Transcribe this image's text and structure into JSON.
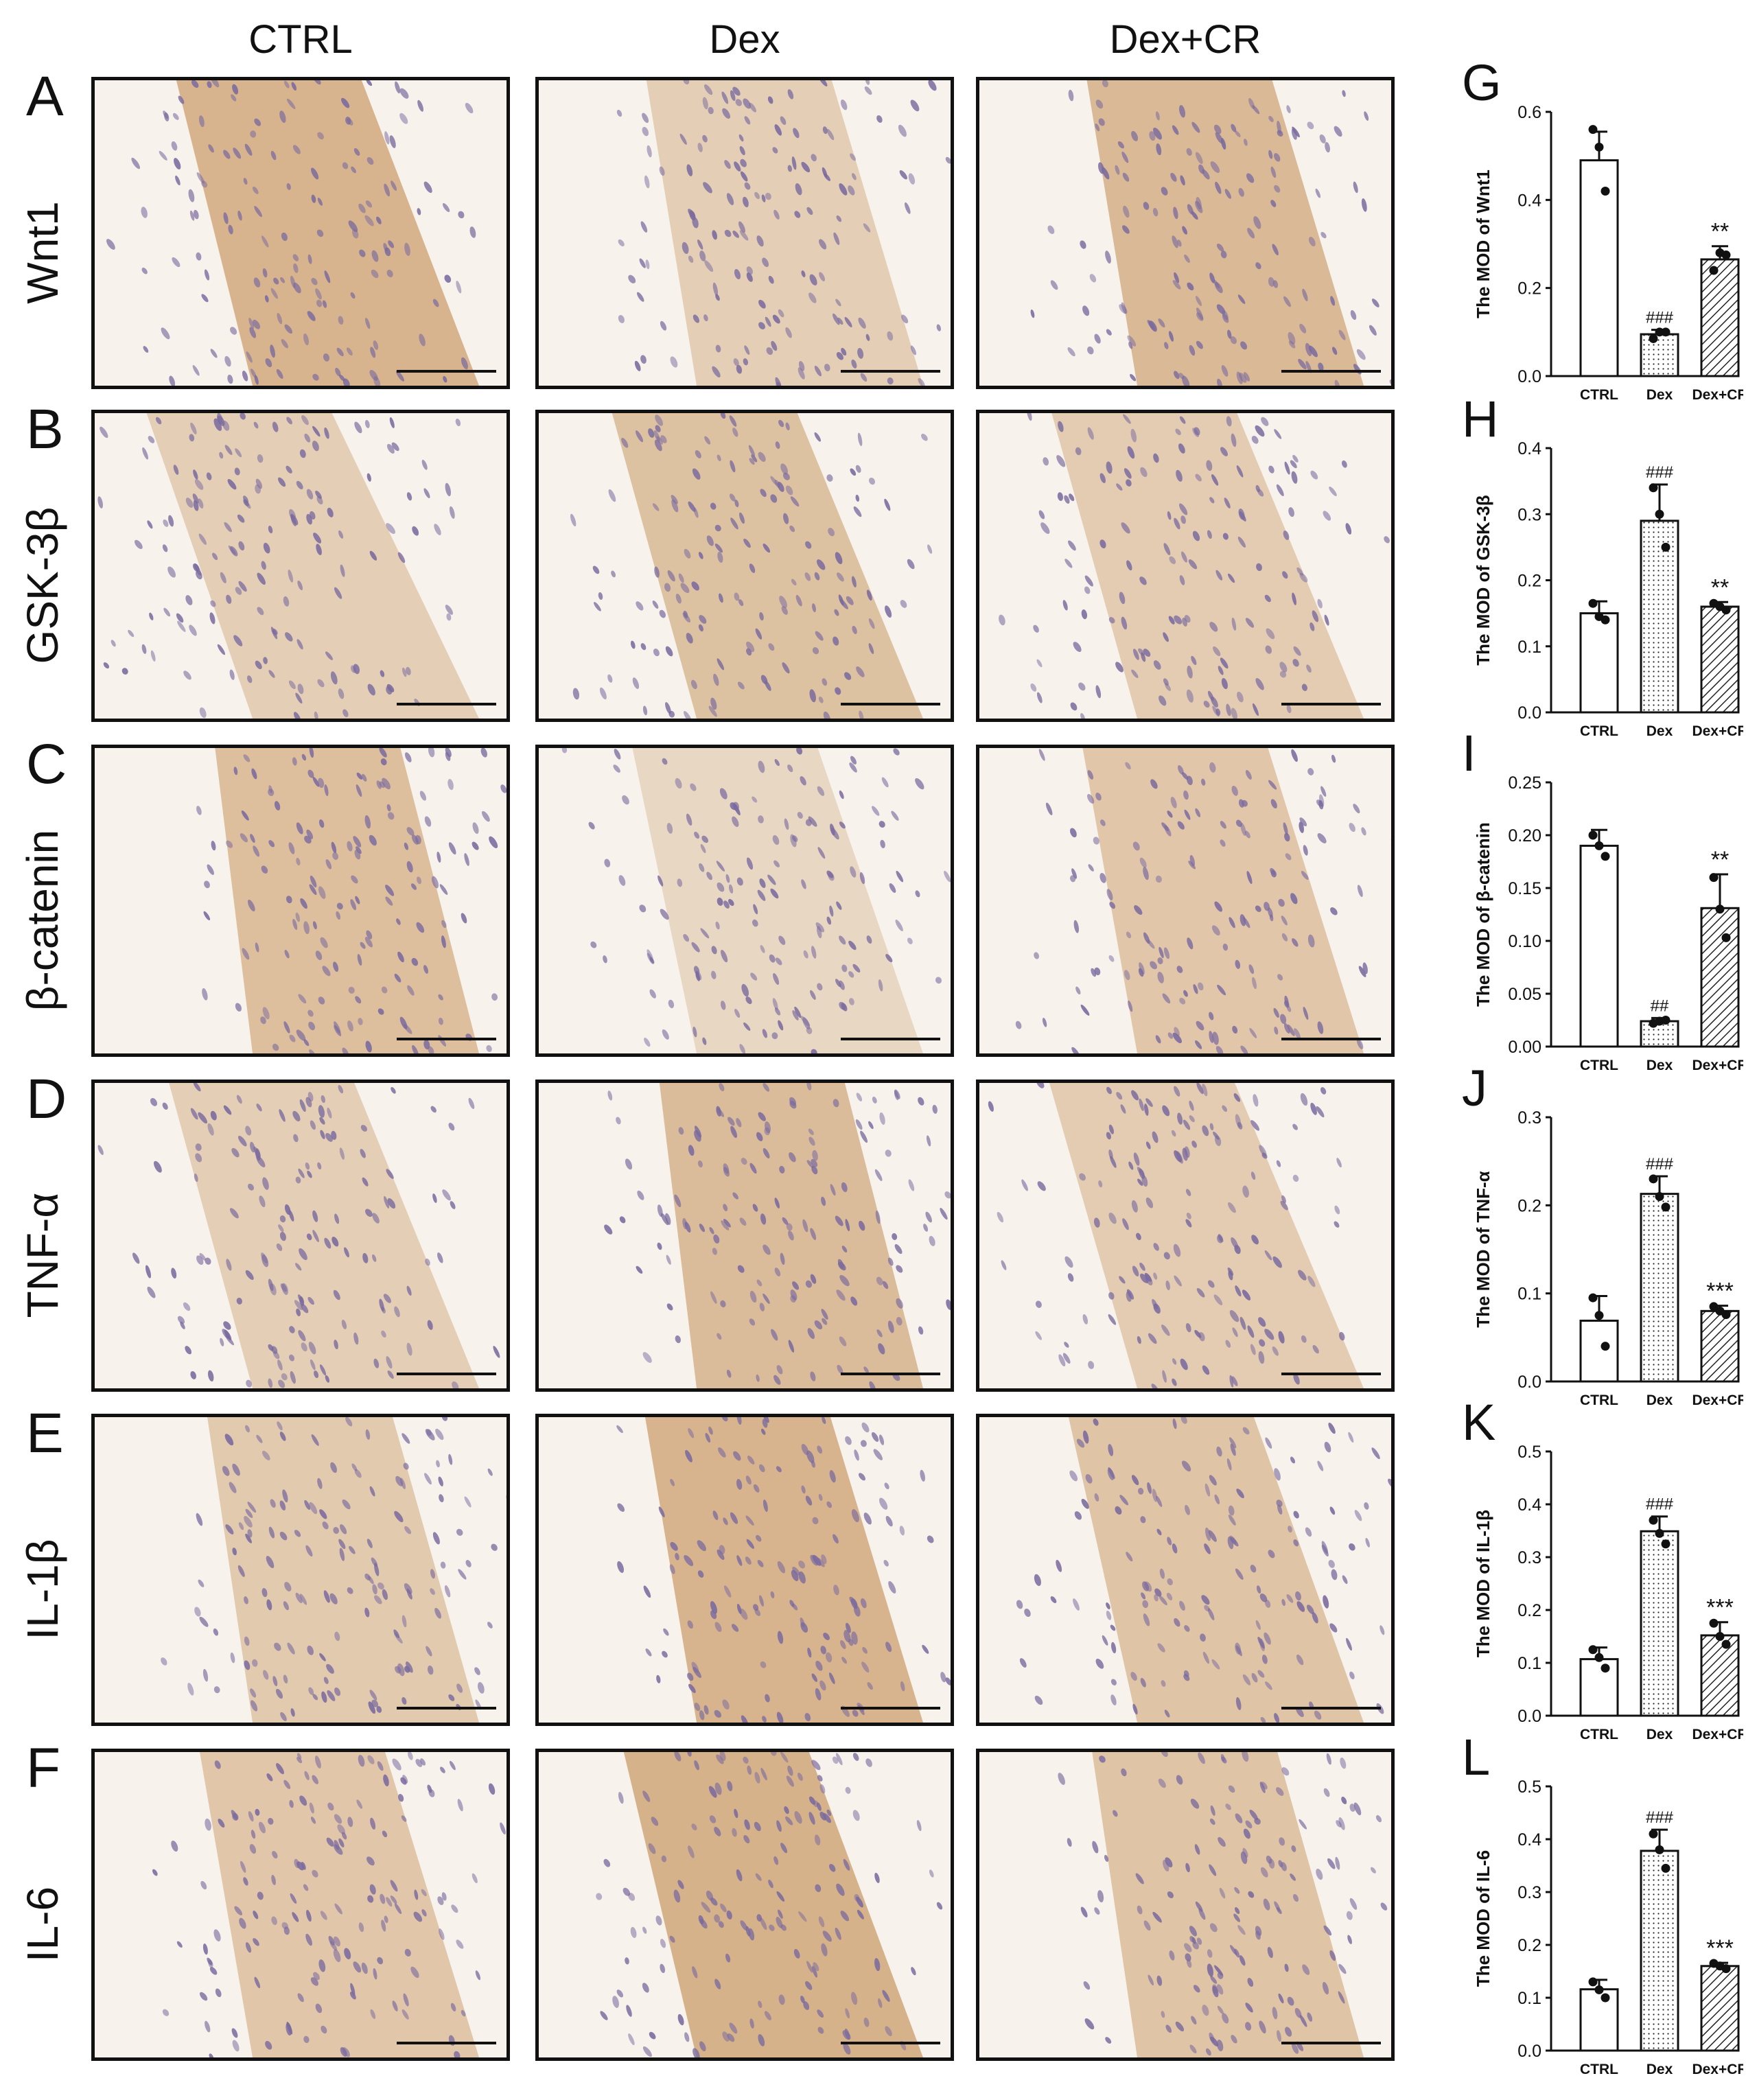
{
  "columns": [
    "CTRL",
    "Dex",
    "Dex+CR"
  ],
  "rows": [
    {
      "letter": "A",
      "label": "Wnt1",
      "stain": [
        0.75,
        0.25,
        0.65
      ]
    },
    {
      "letter": "B",
      "label": "GSK-3β",
      "stain": [
        0.25,
        0.5,
        0.3
      ]
    },
    {
      "letter": "C",
      "label": "β-catenin",
      "stain": [
        0.55,
        0.1,
        0.4
      ]
    },
    {
      "letter": "D",
      "label": "TNF-α",
      "stain": [
        0.25,
        0.6,
        0.3
      ]
    },
    {
      "letter": "E",
      "label": "IL-1β",
      "stain": [
        0.35,
        0.75,
        0.45
      ]
    },
    {
      "letter": "F",
      "label": "IL-6",
      "stain": [
        0.4,
        0.8,
        0.45
      ]
    }
  ],
  "colors": {
    "stain": "#c99a66",
    "nuclei": "#7a6a9e",
    "background": "#f7f2ec"
  },
  "chart_data": [
    {
      "letter": "G",
      "type": "bar",
      "categories": [
        "CTRL",
        "Dex",
        "Dex+CR"
      ],
      "ylabel": "The MOD of Wnt1",
      "ylim": [
        0,
        0.6
      ],
      "yticks": [
        "0.0",
        "0.2",
        "0.4",
        "0.6"
      ],
      "yticks_v": [
        0,
        0.2,
        0.4,
        0.6
      ],
      "values": [
        0.49,
        0.095,
        0.265
      ],
      "errors": [
        0.065,
        0.01,
        0.03
      ],
      "points": [
        [
          0.56,
          0.52,
          0.42
        ],
        [
          0.085,
          0.1,
          0.1
        ],
        [
          0.24,
          0.28,
          0.275
        ]
      ],
      "annotations": [
        "",
        "###",
        "**"
      ]
    },
    {
      "letter": "H",
      "type": "bar",
      "categories": [
        "CTRL",
        "Dex",
        "Dex+CR"
      ],
      "ylabel": "The MOD of GSK-3β",
      "ylim": [
        0,
        0.4
      ],
      "yticks": [
        "0.0",
        "0.1",
        "0.2",
        "0.3",
        "0.4"
      ],
      "yticks_v": [
        0,
        0.1,
        0.2,
        0.3,
        0.4
      ],
      "values": [
        0.15,
        0.29,
        0.16
      ],
      "errors": [
        0.018,
        0.055,
        0.007
      ],
      "points": [
        [
          0.165,
          0.145,
          0.14
        ],
        [
          0.34,
          0.3,
          0.25
        ],
        [
          0.165,
          0.16,
          0.155
        ]
      ],
      "annotations": [
        "",
        "###",
        "**"
      ]
    },
    {
      "letter": "I",
      "type": "bar",
      "categories": [
        "CTRL",
        "Dex",
        "Dex+CR"
      ],
      "ylabel": "The MOD of β-catenin",
      "ylim": [
        0,
        0.25
      ],
      "yticks": [
        "0.00",
        "0.05",
        "0.10",
        "0.15",
        "0.20",
        "0.25"
      ],
      "yticks_v": [
        0,
        0.05,
        0.1,
        0.15,
        0.2,
        0.25
      ],
      "values": [
        0.19,
        0.024,
        0.131
      ],
      "errors": [
        0.015,
        0.003,
        0.032
      ],
      "points": [
        [
          0.2,
          0.19,
          0.18
        ],
        [
          0.022,
          0.024,
          0.025
        ],
        [
          0.16,
          0.13,
          0.103
        ]
      ],
      "annotations": [
        "",
        "##",
        "**"
      ]
    },
    {
      "letter": "J",
      "type": "bar",
      "categories": [
        "CTRL",
        "Dex",
        "Dex+CR"
      ],
      "ylabel": "The MOD of TNF-α",
      "ylim": [
        0,
        0.3
      ],
      "yticks": [
        "0.0",
        "0.1",
        "0.2",
        "0.3"
      ],
      "yticks_v": [
        0,
        0.1,
        0.2,
        0.3
      ],
      "values": [
        0.069,
        0.213,
        0.08
      ],
      "errors": [
        0.028,
        0.02,
        0.006
      ],
      "points": [
        [
          0.095,
          0.075,
          0.04
        ],
        [
          0.23,
          0.21,
          0.198
        ],
        [
          0.085,
          0.08,
          0.076
        ]
      ],
      "annotations": [
        "",
        "###",
        "***"
      ]
    },
    {
      "letter": "K",
      "type": "bar",
      "categories": [
        "CTRL",
        "Dex",
        "Dex+CR"
      ],
      "ylabel": "The MOD of IL-1β",
      "ylim": [
        0,
        0.5
      ],
      "yticks": [
        "0.0",
        "0.1",
        "0.2",
        "0.3",
        "0.4",
        "0.5"
      ],
      "yticks_v": [
        0,
        0.1,
        0.2,
        0.3,
        0.4,
        0.5
      ],
      "values": [
        0.107,
        0.349,
        0.152
      ],
      "errors": [
        0.022,
        0.028,
        0.025
      ],
      "points": [
        [
          0.125,
          0.11,
          0.09
        ],
        [
          0.37,
          0.345,
          0.325
        ],
        [
          0.175,
          0.15,
          0.135
        ]
      ],
      "annotations": [
        "",
        "###",
        "***"
      ]
    },
    {
      "letter": "L",
      "type": "bar",
      "categories": [
        "CTRL",
        "Dex",
        "Dex+CR"
      ],
      "ylabel": "The MOD of IL-6",
      "ylim": [
        0,
        0.5
      ],
      "yticks": [
        "0.0",
        "0.1",
        "0.2",
        "0.3",
        "0.4",
        "0.5"
      ],
      "yticks_v": [
        0,
        0.1,
        0.2,
        0.3,
        0.4,
        0.5
      ],
      "values": [
        0.116,
        0.378,
        0.16
      ],
      "errors": [
        0.018,
        0.04,
        0.006
      ],
      "points": [
        [
          0.13,
          0.115,
          0.1
        ],
        [
          0.41,
          0.38,
          0.345
        ],
        [
          0.165,
          0.16,
          0.155
        ]
      ],
      "annotations": [
        "",
        "###",
        "***"
      ]
    }
  ]
}
